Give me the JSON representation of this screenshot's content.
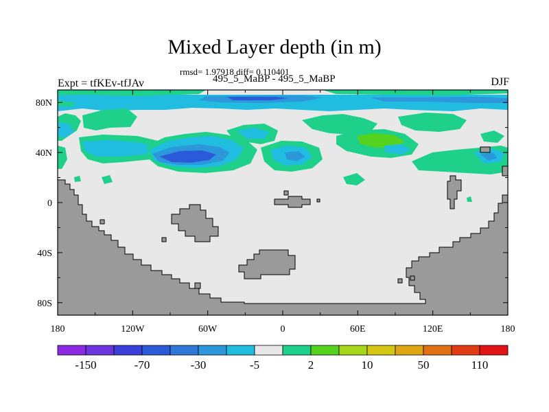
{
  "header": {
    "title": "Mixed Layer depth (in m)",
    "stats": "rmsd= 1.97918 diff= 0.110401",
    "runs": "495_5_MaBP - 495_5_MaBP",
    "experiment": "Expt = tfKEv-tfJAv",
    "season": "DJF"
  },
  "axes": {
    "y_ticks": [
      {
        "label": "80N",
        "lat": 80
      },
      {
        "label": "40N",
        "lat": 40
      },
      {
        "label": "0",
        "lat": 0
      },
      {
        "label": "40S",
        "lat": -40
      },
      {
        "label": "80S",
        "lat": -80
      }
    ],
    "x_ticks": [
      {
        "label": "180",
        "lon": -180
      },
      {
        "label": "120W",
        "lon": -120
      },
      {
        "label": "60W",
        "lon": -60
      },
      {
        "label": "0",
        "lon": 0
      },
      {
        "label": "60E",
        "lon": 60
      },
      {
        "label": "120E",
        "lon": 120
      },
      {
        "label": "180",
        "lon": 180
      }
    ],
    "lon_range": [
      -180,
      180
    ],
    "lat_range": [
      -90,
      90
    ]
  },
  "colorbar": {
    "colors": [
      "#8a2be2",
      "#6a35dd",
      "#3b3fd9",
      "#2a5ad8",
      "#2f78d8",
      "#2d97dc",
      "#20bde0",
      "#e8e8e8",
      "#1ed08a",
      "#55d21e",
      "#a5d61a",
      "#d6c614",
      "#dea613",
      "#e07014",
      "#e03c14",
      "#e01414"
    ],
    "labels": [
      {
        "text": "-150",
        "boundary": 1
      },
      {
        "text": "-70",
        "boundary": 3
      },
      {
        "text": "-30",
        "boundary": 5
      },
      {
        "text": "-5",
        "boundary": 7
      },
      {
        "text": "2",
        "boundary": 9
      },
      {
        "text": "10",
        "boundary": 11
      },
      {
        "text": "50",
        "boundary": 13
      },
      {
        "text": "110",
        "boundary": 15
      }
    ]
  },
  "colors": {
    "land": "#9a9a9a",
    "background_field": "#e8e8e8",
    "light_blue": "#20bde0",
    "mid_blue": "#2d97dc",
    "dark_blue": "#2a5ad8",
    "green": "#1ed08a",
    "bright_green": "#55d21e"
  }
}
